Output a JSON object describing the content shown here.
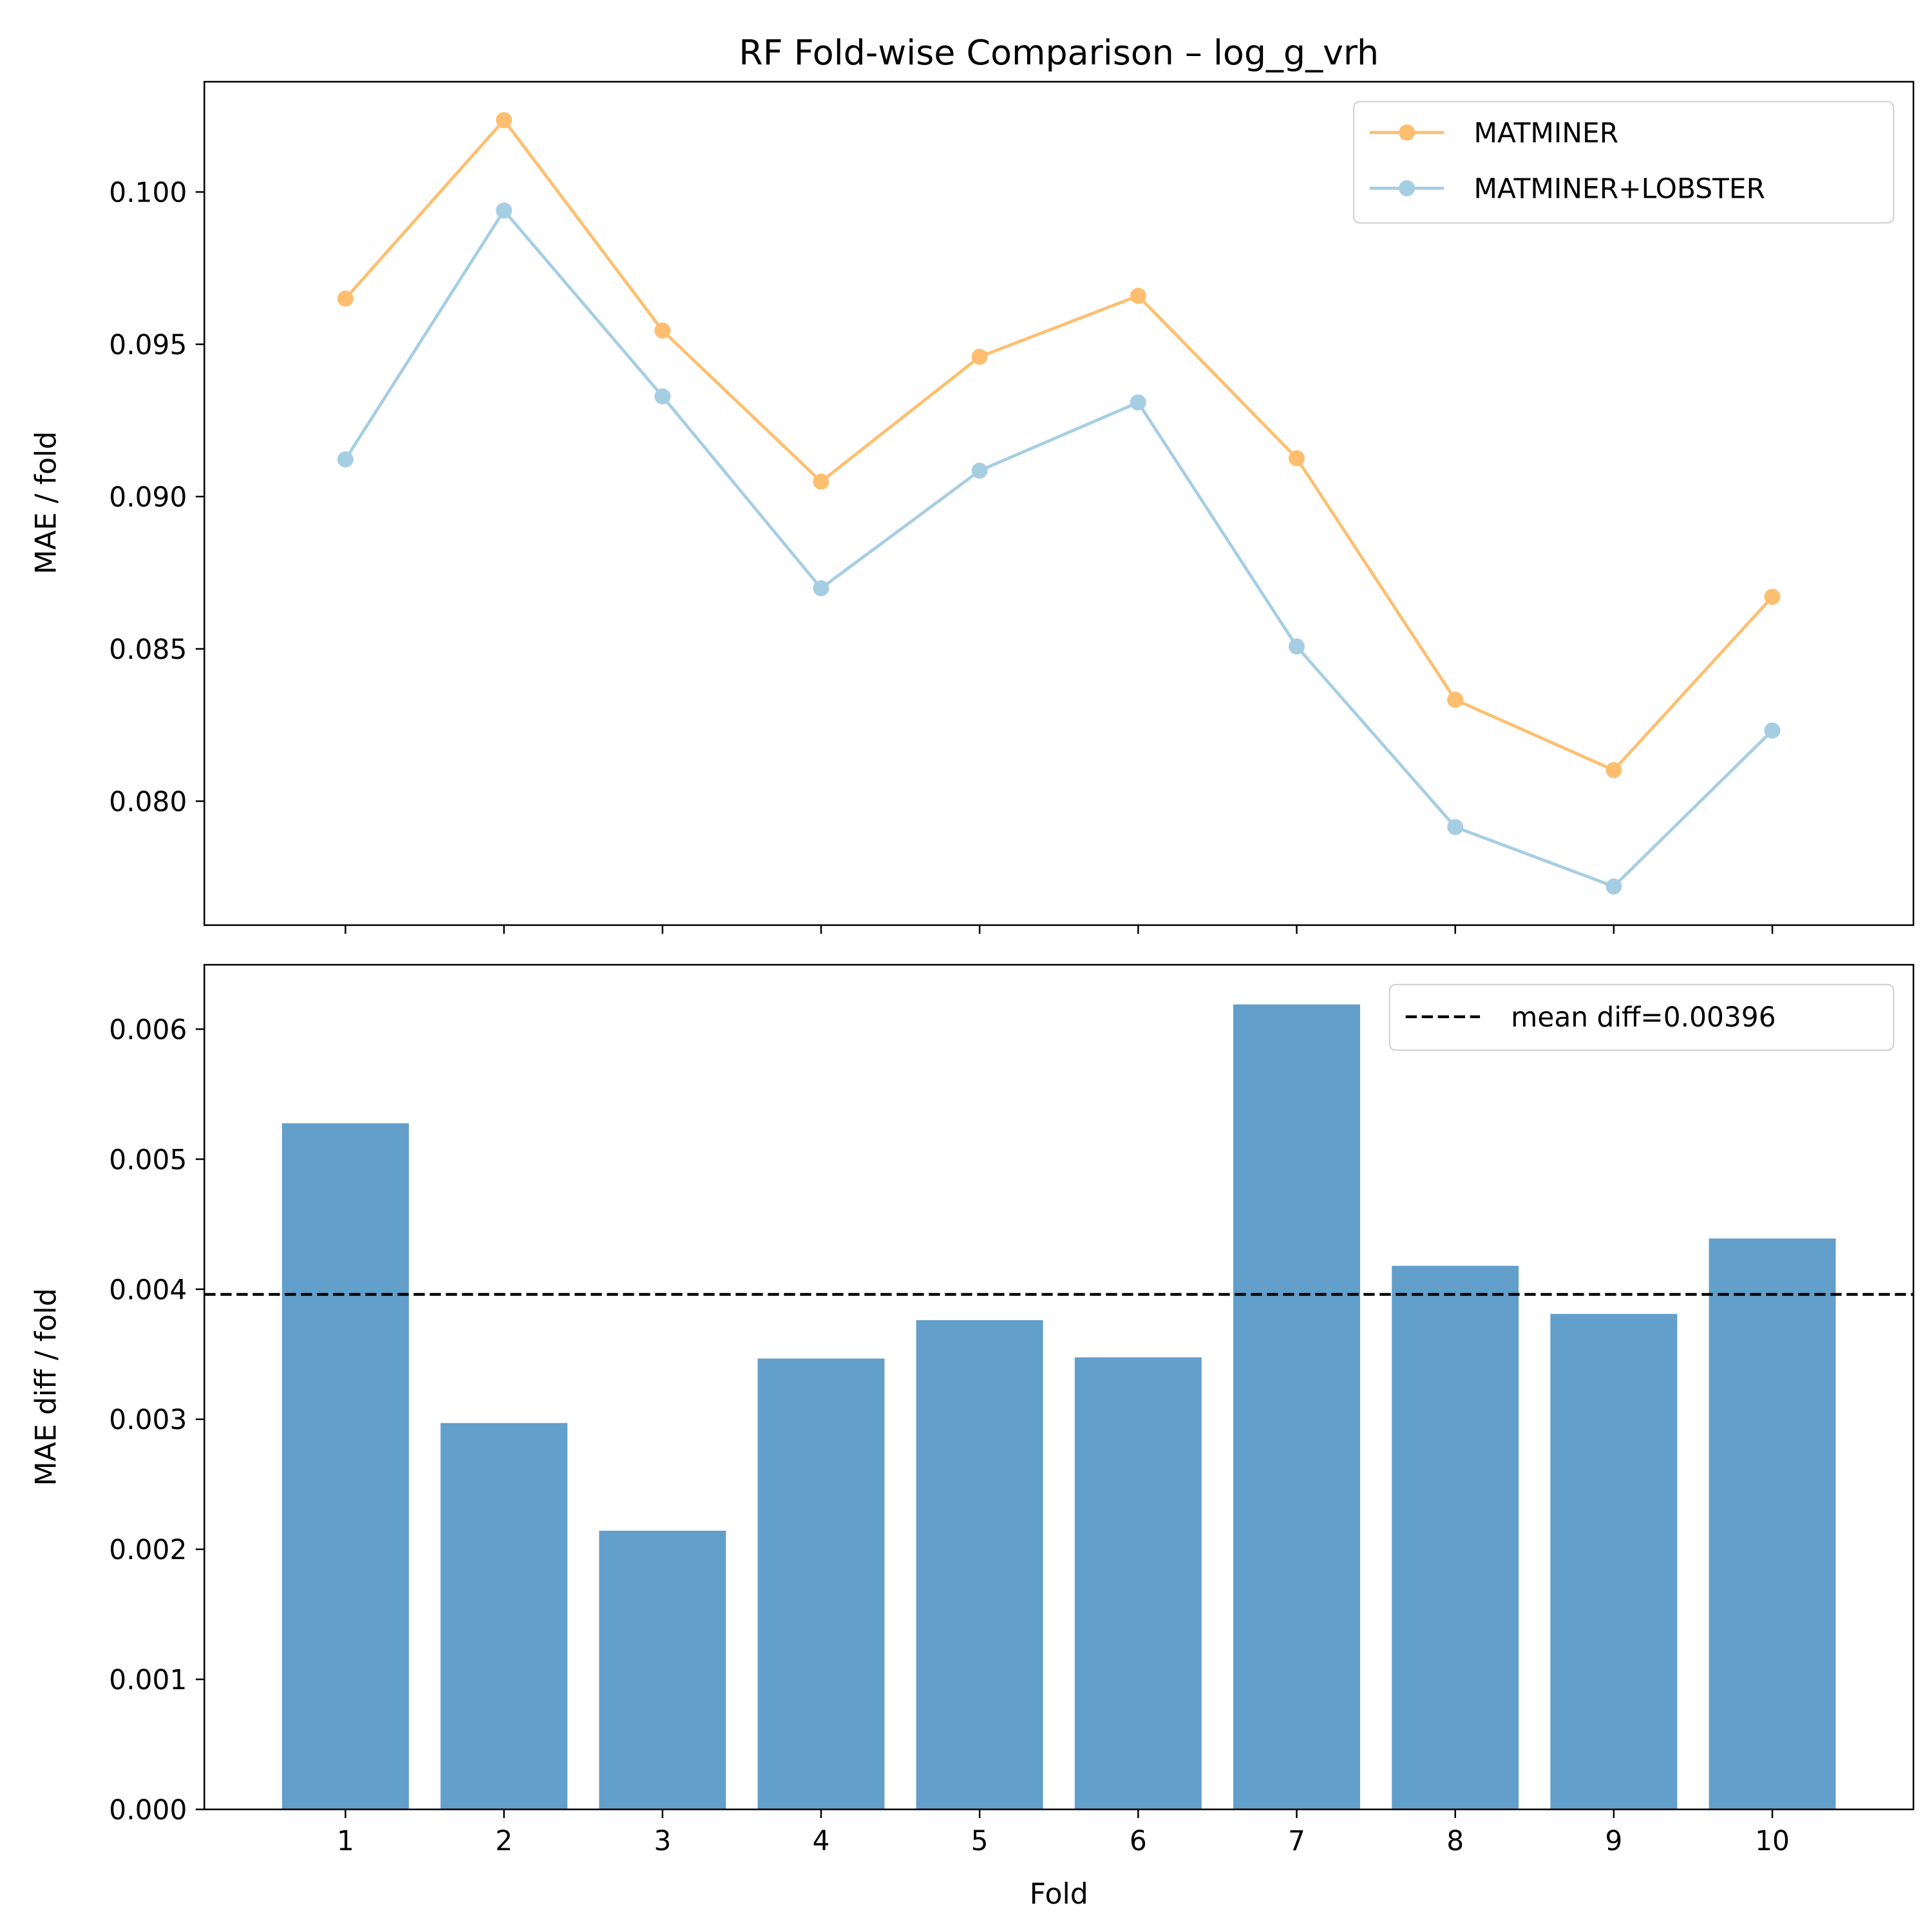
{
  "chart_data": [
    {
      "type": "line",
      "title": "RF Fold-wise Comparison – log_g_vrh",
      "xlabel": "",
      "ylabel": "MAE / fold",
      "x": [
        1,
        2,
        3,
        4,
        5,
        6,
        7,
        8,
        9,
        10
      ],
      "xlim": [
        0.11,
        10.89
      ],
      "ylim": [
        0.07593,
        0.10362
      ],
      "yticks": [
        0.08,
        0.085,
        0.09,
        0.095,
        0.1
      ],
      "ytick_labels": [
        "0.080",
        "0.085",
        "0.090",
        "0.095",
        "0.100"
      ],
      "grid": false,
      "legend_placement": "upper right",
      "series": [
        {
          "name": "MATMINER",
          "color": "#fdbf6f",
          "values": [
            0.0965,
            0.10236,
            0.09545,
            0.09049,
            0.09459,
            0.09659,
            0.09126,
            0.08333,
            0.08102,
            0.08671
          ]
        },
        {
          "name": "MATMINER+LOBSTER",
          "color": "#a6cee3",
          "values": [
            0.09122,
            0.09939,
            0.09329,
            0.08699,
            0.09085,
            0.09309,
            0.08508,
            0.07915,
            0.0772,
            0.08232
          ]
        }
      ]
    },
    {
      "type": "bar",
      "xlabel": "Fold",
      "ylabel": "MAE diff / fold",
      "categories": [
        "1",
        "2",
        "3",
        "4",
        "5",
        "6",
        "7",
        "8",
        "9",
        "10"
      ],
      "values": [
        0.005276,
        0.002971,
        0.002143,
        0.003467,
        0.003762,
        0.003476,
        0.00619,
        0.00418,
        0.00381,
        0.00439
      ],
      "bar_color": "#629fcb",
      "xlim": [
        0.11,
        10.89
      ],
      "ylim": [
        0,
        0.006495
      ],
      "yticks": [
        0.0,
        0.001,
        0.002,
        0.003,
        0.004,
        0.005,
        0.006
      ],
      "ytick_labels": [
        "0.000",
        "0.001",
        "0.002",
        "0.003",
        "0.004",
        "0.005",
        "0.006"
      ],
      "mean_line": {
        "value": 0.00396,
        "label": "mean diff=0.00396",
        "color": "#000000",
        "style": "dashed"
      },
      "grid": false,
      "legend_placement": "upper right"
    }
  ]
}
